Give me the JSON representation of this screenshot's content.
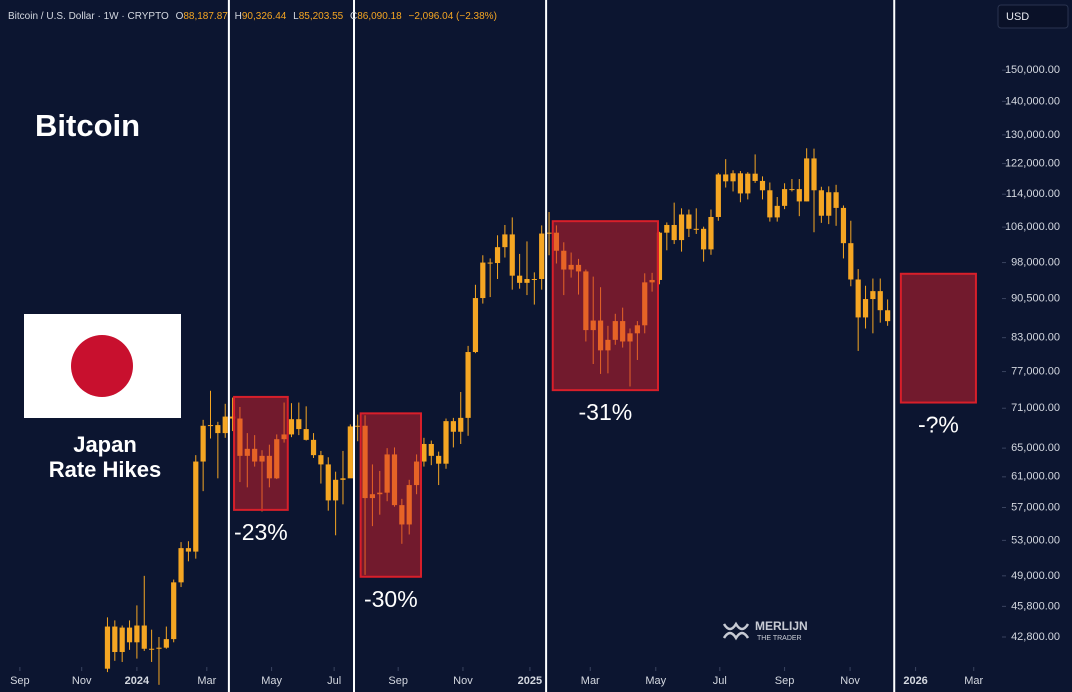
{
  "header": {
    "symbol": "Bitcoin / U.S. Dollar · 1W · CRYPTO",
    "fields": [
      {
        "key": "O",
        "value": "88,187.87"
      },
      {
        "key": "H",
        "value": "90,326.44"
      },
      {
        "key": "L",
        "value": "85,203.55"
      },
      {
        "key": "C",
        "value": "86,090.18"
      }
    ],
    "change": "−2,096.04 (−2.38%)",
    "currency": "USD"
  },
  "chart_data": {
    "type": "candlestick",
    "title": "Bitcoin",
    "note_lines": [
      "Japan",
      "Rate Hikes"
    ],
    "watermark": [
      "MERLIJN",
      "THE TRADER"
    ],
    "color": "#f5a623",
    "log_scale": true,
    "ylim": [
      40050,
      175200
    ],
    "yticks": [
      {
        "value": 42800,
        "label": "42,800.00"
      },
      {
        "value": 45800,
        "label": "45,800.00"
      },
      {
        "value": 49000,
        "label": "49,000.00"
      },
      {
        "value": 53000,
        "label": "53,000.00"
      },
      {
        "value": 57000,
        "label": "57,000.00"
      },
      {
        "value": 61000,
        "label": "61,000.00"
      },
      {
        "value": 65000,
        "label": "65,000.00"
      },
      {
        "value": 71000,
        "label": "71,000.00"
      },
      {
        "value": 77000,
        "label": "77,000.00"
      },
      {
        "value": 83000,
        "label": "83,000.00"
      },
      {
        "value": 90500,
        "label": "90,500.00"
      },
      {
        "value": 98000,
        "label": "98,000.00"
      },
      {
        "value": 106000,
        "label": "106,000.00"
      },
      {
        "value": 114000,
        "label": "114,000.00"
      },
      {
        "value": 122000,
        "label": "122,000.00"
      },
      {
        "value": 130000,
        "label": "130,000.00"
      },
      {
        "value": 140000,
        "label": "140,000.00"
      },
      {
        "value": 150000,
        "label": "150,000.00"
      }
    ],
    "xlim": [
      -18.6,
      117.27
    ],
    "xticks": [
      {
        "value": -15.9,
        "label": "Sep"
      },
      {
        "value": -7.5,
        "label": "Nov"
      },
      {
        "value": 0,
        "label": "2024"
      },
      {
        "value": 9.5,
        "label": "Mar"
      },
      {
        "value": 18.3,
        "label": "May"
      },
      {
        "value": 26.8,
        "label": "Jul"
      },
      {
        "value": 35.5,
        "label": "Sep"
      },
      {
        "value": 44.3,
        "label": "Nov"
      },
      {
        "value": 53.4,
        "label": "2025"
      },
      {
        "value": 61.6,
        "label": "Mar"
      },
      {
        "value": 70.5,
        "label": "May"
      },
      {
        "value": 79.2,
        "label": "Jul"
      },
      {
        "value": 88,
        "label": "Sep"
      },
      {
        "value": 96.9,
        "label": "Nov"
      },
      {
        "value": 105.8,
        "label": "2026"
      },
      {
        "value": 113.7,
        "label": "Mar"
      }
    ],
    "x": [
      -4,
      -3,
      -2,
      -1,
      0,
      1,
      2,
      3,
      4,
      5,
      6,
      7,
      8,
      9,
      10,
      11,
      12,
      13,
      14,
      15,
      16,
      17,
      18,
      19,
      20,
      21,
      22,
      23,
      24,
      25,
      26,
      27,
      28,
      29,
      30,
      31,
      32,
      33,
      34,
      35,
      36,
      37,
      38,
      39,
      40,
      41,
      42,
      43,
      44,
      45,
      46,
      47,
      48,
      49,
      50,
      51,
      52,
      53,
      54,
      55,
      56,
      57,
      58,
      59,
      60,
      61,
      62,
      63,
      64,
      65,
      66,
      67,
      68,
      69,
      70,
      71,
      72,
      73,
      74,
      75,
      76,
      77,
      78,
      79,
      80,
      81,
      82,
      83,
      84,
      85,
      86,
      87,
      88,
      89,
      90,
      91,
      92,
      93,
      94,
      95,
      96,
      97,
      98,
      99,
      100,
      101,
      102
    ],
    "open": [
      39900,
      43800,
      41400,
      43700,
      42300,
      43900,
      41700,
      41700,
      41800,
      42600,
      48300,
      52100,
      51700,
      63100,
      68300,
      68400,
      67200,
      69700,
      69400,
      63900,
      64900,
      63100,
      63900,
      60800,
      66300,
      67000,
      69300,
      67800,
      66200,
      64000,
      62700,
      57900,
      60600,
      60800,
      68200,
      68300,
      58200,
      58700,
      58900,
      64100,
      57300,
      54900,
      59900,
      63100,
      65600,
      63900,
      62800,
      69000,
      67400,
      69500,
      80400,
      90600,
      98000,
      97900,
      101400,
      104300,
      95200,
      93700,
      94500,
      94500,
      104500,
      104700,
      100600,
      96500,
      97500,
      96100,
      84400,
      86200,
      80700,
      82600,
      86100,
      82300,
      83800,
      85300,
      93800,
      94300,
      104700,
      106500,
      103000,
      109000,
      105600,
      105600,
      100900,
      108400,
      119100,
      117300,
      119400,
      114200,
      119300,
      117400,
      115000,
      108300,
      111100,
      115300,
      115300,
      112200,
      123400,
      115000,
      108700,
      114500,
      110600,
      102300,
      94400,
      86800,
      90400,
      92000,
      88187.87
    ],
    "high": [
      44700,
      44400,
      43900,
      44400,
      45900,
      49000,
      43500,
      42800,
      43800,
      48600,
      52800,
      52900,
      64000,
      69200,
      73800,
      68900,
      71700,
      72700,
      71200,
      67200,
      66900,
      64700,
      65500,
      67000,
      71900,
      71800,
      71900,
      71300,
      67200,
      64600,
      63700,
      61700,
      64600,
      68500,
      70000,
      69900,
      62700,
      61800,
      65000,
      65100,
      58100,
      60600,
      64100,
      66500,
      66100,
      64500,
      69400,
      69500,
      73600,
      81500,
      93300,
      99600,
      98900,
      104100,
      106500,
      108300,
      99900,
      102700,
      95900,
      106400,
      109600,
      106400,
      102500,
      100200,
      98800,
      96500,
      95000,
      92800,
      85200,
      87500,
      88700,
      84700,
      86100,
      95700,
      95800,
      104900,
      107100,
      111900,
      110500,
      110200,
      110500,
      106100,
      110200,
      119500,
      123200,
      120200,
      120000,
      119700,
      124500,
      118600,
      117000,
      113300,
      116800,
      117900,
      117900,
      126200,
      126100,
      115900,
      116000,
      116400,
      111200,
      107500,
      96600,
      93100,
      94600,
      94600,
      90326.44
    ],
    "low": [
      39600,
      40600,
      40500,
      41600,
      40800,
      41500,
      40500,
      38500,
      41700,
      42300,
      47800,
      50600,
      50900,
      59100,
      66400,
      60800,
      66500,
      67500,
      60300,
      59600,
      62400,
      56500,
      59600,
      60700,
      65800,
      66600,
      66900,
      66100,
      63600,
      60100,
      56600,
      53600,
      57400,
      61400,
      66000,
      49100,
      54700,
      56100,
      57800,
      57100,
      52600,
      53700,
      58700,
      62400,
      62600,
      59900,
      62100,
      65100,
      65600,
      66800,
      80200,
      89500,
      90800,
      94500,
      99100,
      92300,
      92500,
      91200,
      89300,
      92300,
      99600,
      97800,
      91200,
      94800,
      91300,
      82300,
      78300,
      76600,
      76700,
      81700,
      81200,
      74500,
      79000,
      83800,
      91900,
      93400,
      100700,
      102100,
      100400,
      103700,
      104400,
      98200,
      99700,
      107500,
      115700,
      114700,
      112000,
      112700,
      116900,
      112700,
      107300,
      107300,
      110300,
      114700,
      108600,
      112200,
      104800,
      107000,
      106700,
      106300,
      98900,
      93000,
      80600,
      84700,
      83800,
      85800,
      85203.55
    ],
    "close": [
      43800,
      41400,
      43700,
      42300,
      43900,
      41700,
      41700,
      41800,
      42600,
      48300,
      52100,
      51700,
      63100,
      68300,
      68400,
      67200,
      69700,
      69400,
      63900,
      64900,
      63100,
      63900,
      60800,
      66300,
      67000,
      69300,
      67800,
      66200,
      64000,
      62700,
      57900,
      60600,
      60800,
      68200,
      68300,
      58200,
      58700,
      58900,
      64100,
      57300,
      54900,
      59900,
      63100,
      65600,
      63900,
      62800,
      69000,
      67400,
      69500,
      80400,
      90600,
      98000,
      97900,
      101400,
      104300,
      95200,
      93700,
      94500,
      94500,
      104500,
      104700,
      100600,
      96500,
      97500,
      96100,
      84400,
      86200,
      80700,
      82600,
      86100,
      82300,
      83800,
      85300,
      93800,
      94300,
      104700,
      106500,
      103000,
      109000,
      105600,
      105600,
      100900,
      108400,
      119100,
      117300,
      119400,
      114200,
      119300,
      117400,
      115000,
      108300,
      111100,
      115300,
      115300,
      112200,
      123400,
      115000,
      108700,
      114500,
      110600,
      102300,
      94400,
      86800,
      90400,
      92000,
      88200,
      86090.18
    ],
    "rate_hikes": [
      12.5,
      29.5,
      55.6,
      102.9
    ],
    "box_color": "#d81f2a",
    "ranges": [
      {
        "label": "-23%",
        "x": [
          13.2,
          20.5
        ],
        "y": [
          72800,
          56700
        ]
      },
      {
        "label": "-30%",
        "x": [
          30.4,
          38.6
        ],
        "y": [
          70200,
          48900
        ]
      },
      {
        "label": "-31%",
        "x": [
          56.5,
          70.8
        ],
        "y": [
          107400,
          73900
        ]
      },
      {
        "label": "-?%",
        "x": [
          103.8,
          114.0
        ],
        "y": [
          95600,
          71900
        ]
      }
    ]
  }
}
